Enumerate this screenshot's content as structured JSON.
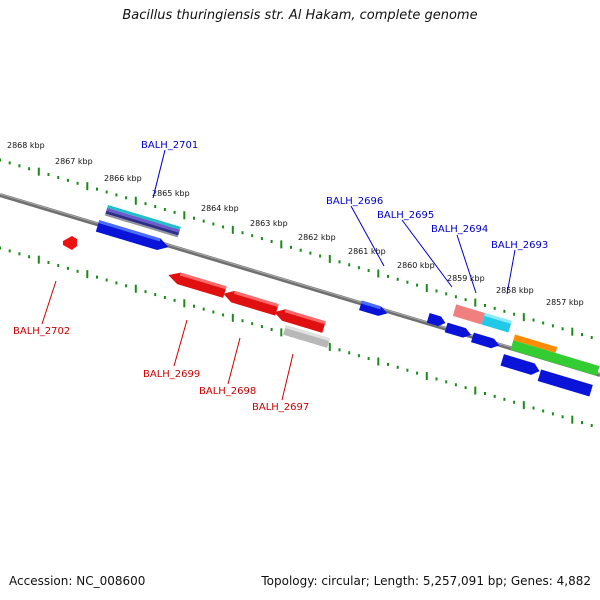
{
  "title": "Bacillus thuringiensis str. Al Hakam, complete genome",
  "accession": "Accession: NC_008600",
  "topology": "Topology: circular; Length: 5,257,091 bp; Genes: 4,882",
  "scale_ticks": [
    "2868 kbp",
    "2867 kbp",
    "2866 kbp",
    "2865 kbp",
    "2864 kbp",
    "2863 kbp",
    "2862 kbp",
    "2861 kbp",
    "2860 kbp",
    "2859 kbp",
    "2858 kbp",
    "2857 kbp"
  ],
  "genes_forward": [
    "BALH_2701",
    "BALH_2696",
    "BALH_2695",
    "BALH_2694",
    "BALH_2693"
  ],
  "genes_reverse": [
    "BALH_2702",
    "BALH_2699",
    "BALH_2698",
    "BALH_2697"
  ],
  "colors": {
    "forward_label": "#0000cc",
    "reverse_label": "#cc0000",
    "tick": "#1a8a1a",
    "backbone": "#777777",
    "forward_gene": "#0a14d8",
    "reverse_gene": "#e01010",
    "olive_gene": "#6b8e23",
    "green_gene": "#33cc33",
    "orange_gene": "#ff8c00",
    "cyan_gene": "#22c8e8",
    "pink_gene": "#f08080",
    "gray_gene": "#b8b8b8"
  }
}
